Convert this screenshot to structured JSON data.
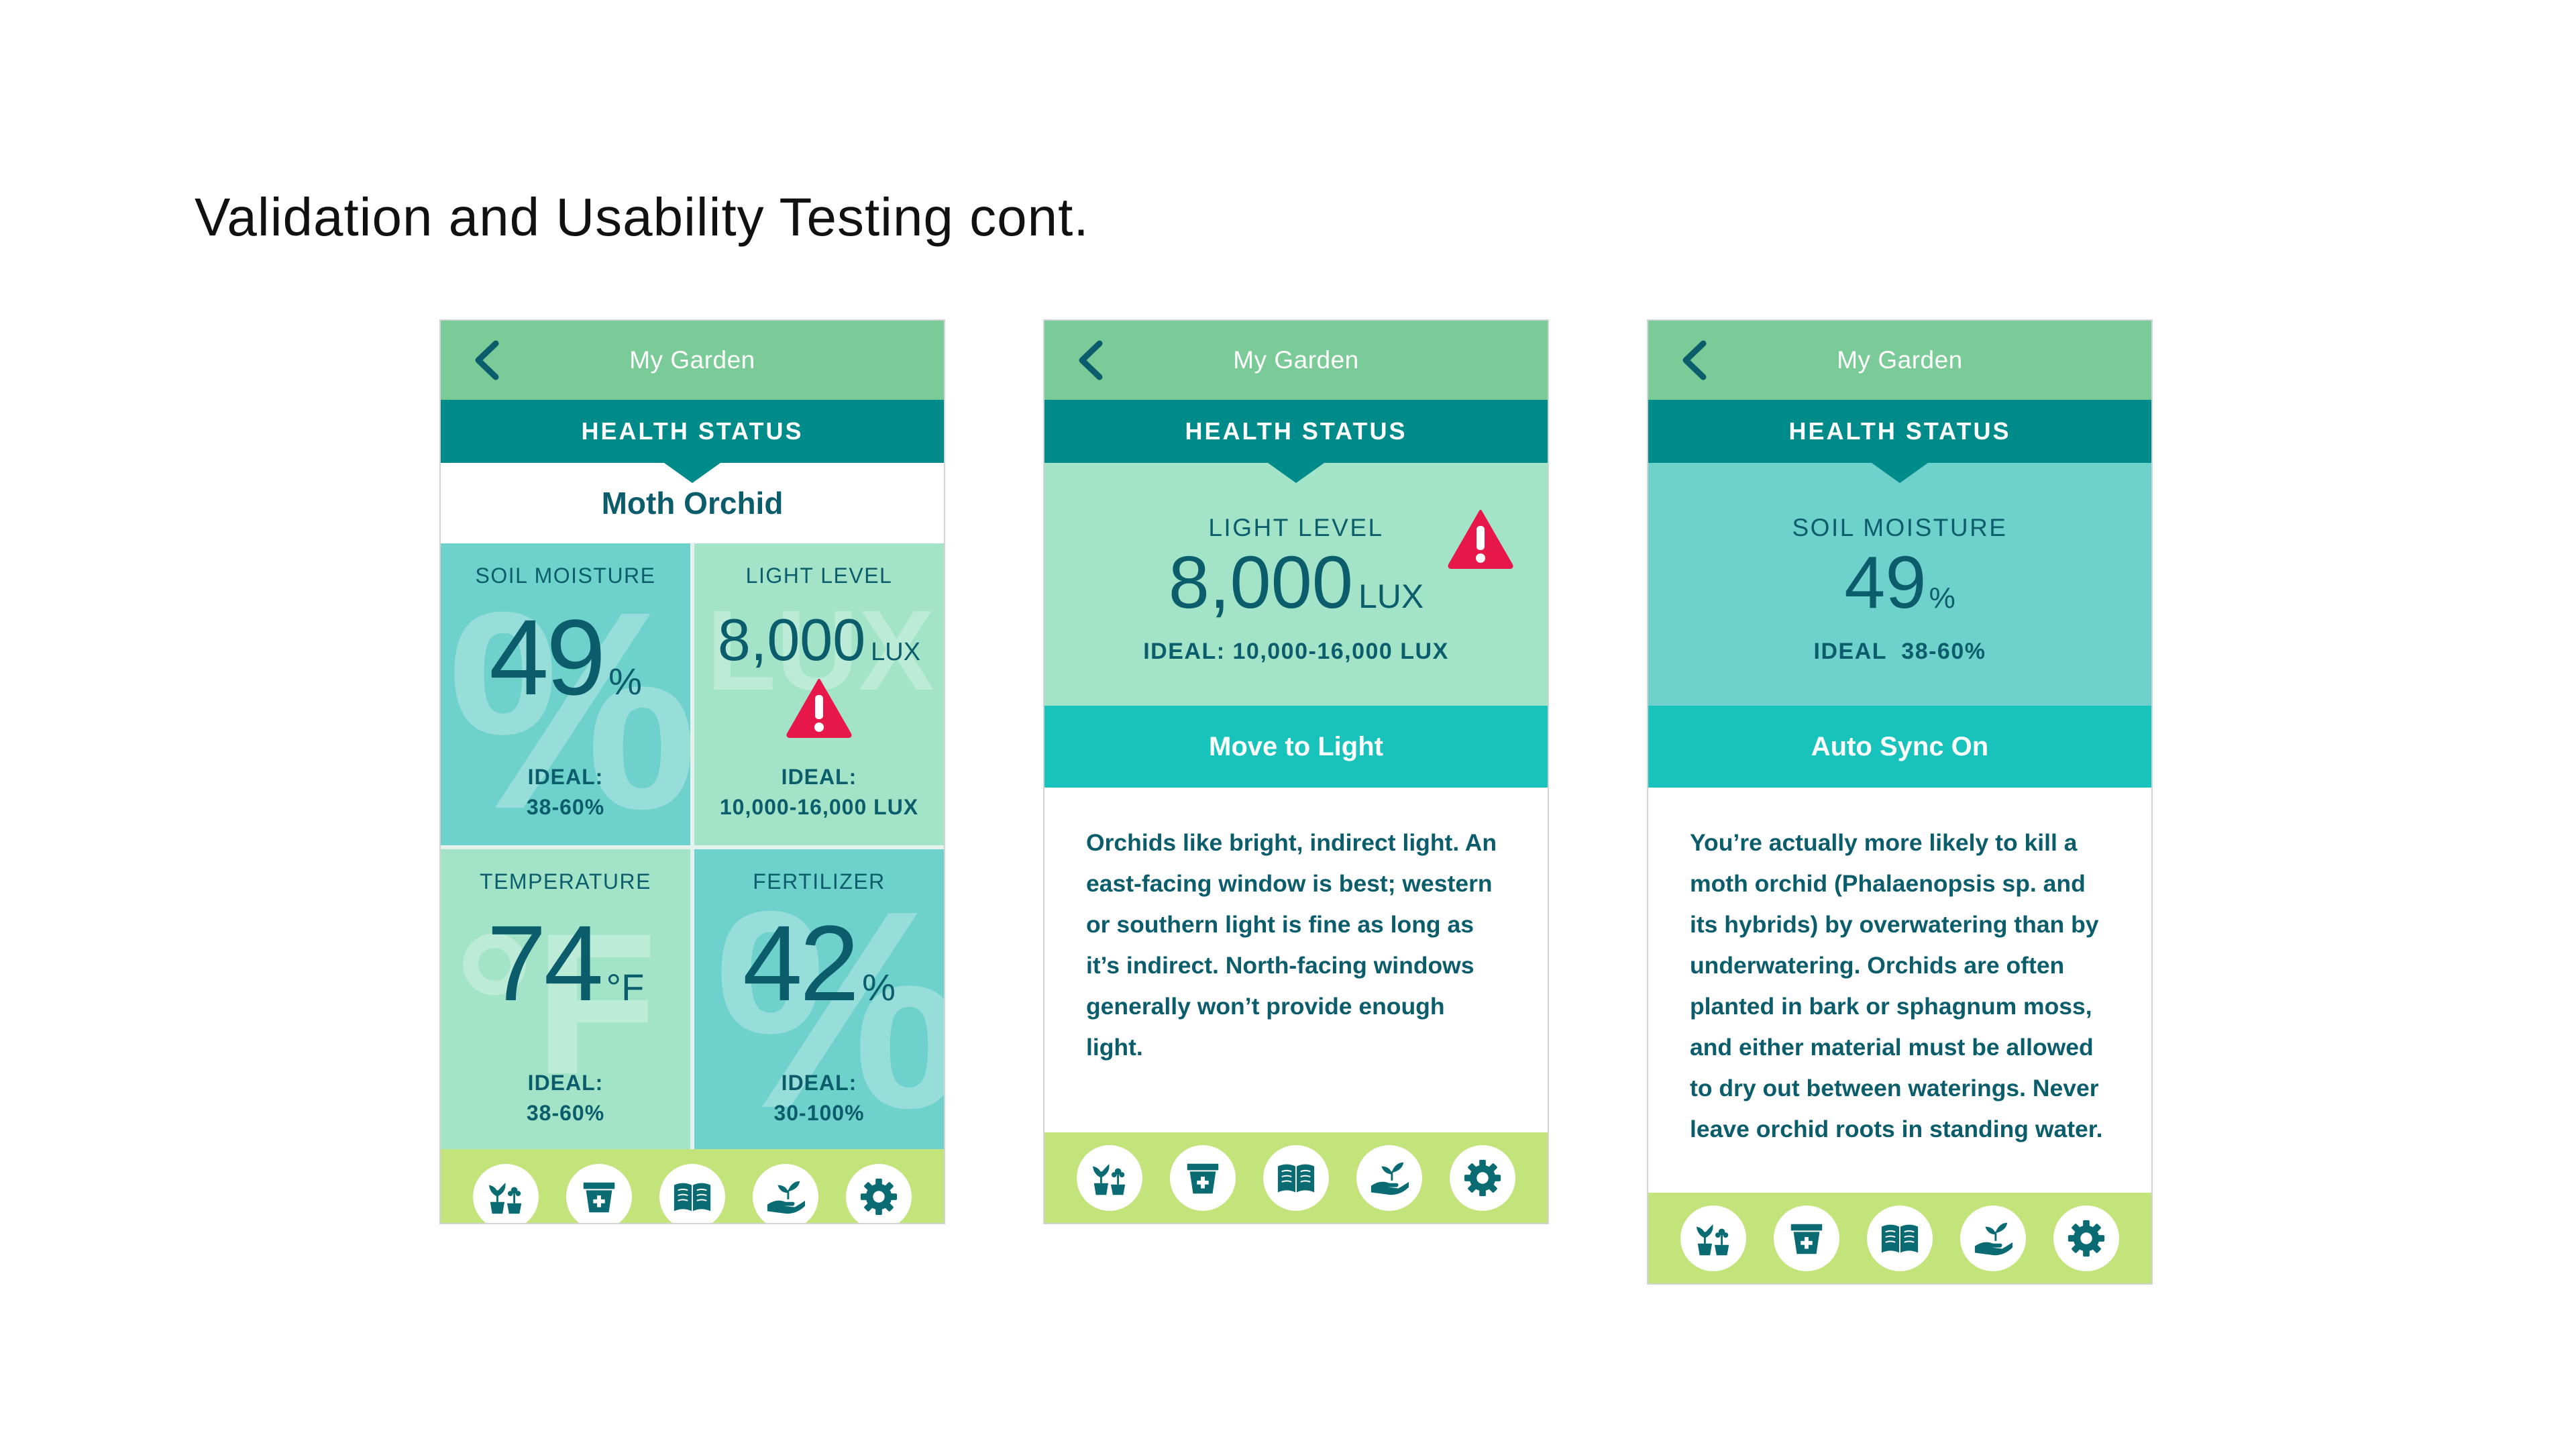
{
  "slide_title": "Validation and Usability Testing cont.",
  "colors": {
    "header": "#7bcb98",
    "health_bar": "#008b8b",
    "teal_tile": "#6fd1cc",
    "mint_tile": "#a3e4c9",
    "action": "#18c3bb",
    "nav_bar": "#c3e37b",
    "text_dark": "#0b5d6b",
    "alert": "#e8174a"
  },
  "icons": [
    "chevron-left-icon",
    "warning-icon",
    "plants-icon",
    "flower-pot-icon",
    "book-icon",
    "hand-plant-icon",
    "gear-icon"
  ],
  "screens": [
    {
      "header_title": "My Garden",
      "health_label": "HEALTH STATUS",
      "plant_name": "Moth Orchid",
      "tiles": [
        {
          "label": "SOIL MOISTURE",
          "value": "49",
          "unit": "%",
          "watermark": "%",
          "ideal_label": "IDEAL:",
          "ideal_value": "38-60%"
        },
        {
          "label": "LIGHT LEVEL",
          "value": "8,000",
          "unit": "LUX",
          "watermark": "LUX",
          "ideal_label": "IDEAL:",
          "ideal_value": "10,000-16,000 LUX",
          "alert": true
        },
        {
          "label": "TEMPERATURE",
          "value": "74",
          "unit": "°F",
          "watermark": "°F",
          "ideal_label": "IDEAL:",
          "ideal_value": "38-60%"
        },
        {
          "label": "FERTILIZER",
          "value": "42",
          "unit": "%",
          "watermark": "%",
          "ideal_label": "IDEAL:",
          "ideal_value": "30-100%"
        }
      ]
    },
    {
      "header_title": "My Garden",
      "health_label": "HEALTH STATUS",
      "metric_label": "LIGHT LEVEL",
      "metric_value": "8,000",
      "metric_unit": "LUX",
      "metric_ideal": "IDEAL: 10,000-16,000 LUX",
      "alert": true,
      "action_label": "Move to Light",
      "info_text": "Orchids like bright, indirect light. An east-facing window is best; western or southern light is fine as long as it’s indirect. North-facing windows generally won’t provide enough light."
    },
    {
      "header_title": "My Garden",
      "health_label": "HEALTH STATUS",
      "metric_label": "SOIL MOISTURE",
      "metric_value": "49",
      "metric_unit": "%",
      "metric_ideal": "IDEAL  38-60%",
      "action_label": "Auto Sync On",
      "info_text": "You’re actually more likely to kill a moth orchid (Phalaenopsis sp. and its hybrids) by overwatering than by underwatering. Orchids are often planted in bark or sphagnum moss, and either material must be allowed to dry out between waterings. Never leave orchid roots in standing water."
    }
  ]
}
